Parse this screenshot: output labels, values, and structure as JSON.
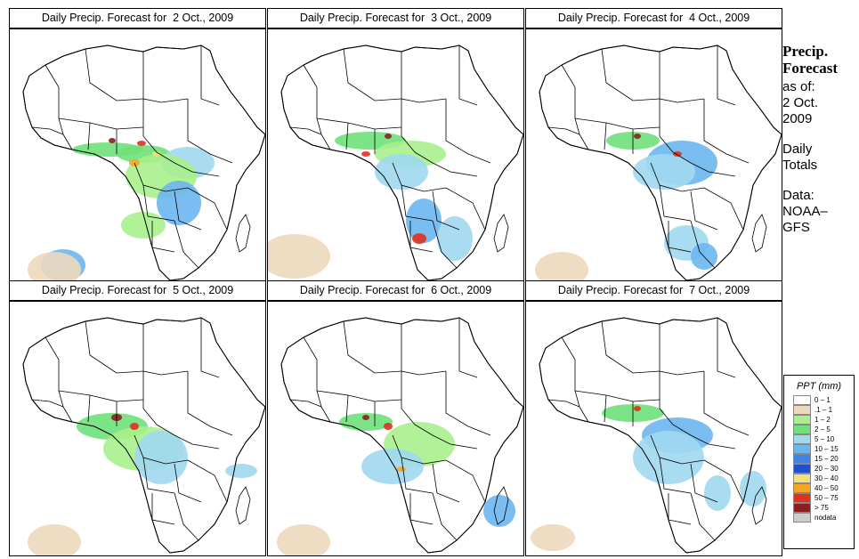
{
  "panels": [
    {
      "title": "Daily Precip. Forecast for  2 Oct., 2009"
    },
    {
      "title": "Daily Precip. Forecast for  3 Oct., 2009"
    },
    {
      "title": "Daily Precip. Forecast for  4 Oct., 2009"
    },
    {
      "title": "Daily Precip. Forecast for  5 Oct., 2009"
    },
    {
      "title": "Daily Precip. Forecast for  6 Oct., 2009"
    },
    {
      "title": "Daily Precip. Forecast for  7 Oct., 2009"
    }
  ],
  "side": {
    "heading_line1": "Precip.",
    "heading_line2": "Forecast",
    "asof_line1": "as of:",
    "asof_line2": "2 Oct.",
    "asof_line3": "2009",
    "daily_line1": "Daily",
    "daily_line2": "Totals",
    "data_line1": "Data:",
    "data_line2": "NOAA–",
    "data_line3": "GFS"
  },
  "legend": {
    "title": "PPT (mm)",
    "items": [
      {
        "label": "0 – 1",
        "color": "#ffffff"
      },
      {
        "label": ".1 – 1",
        "color": "#ecd8bc"
      },
      {
        "label": "1 – 2",
        "color": "#a9f08c"
      },
      {
        "label": "2 – 5",
        "color": "#6fe07a"
      },
      {
        "label": "5 – 10",
        "color": "#a0d8f0"
      },
      {
        "label": "10 – 15",
        "color": "#6bb6ef"
      },
      {
        "label": "15 – 20",
        "color": "#3c85e6"
      },
      {
        "label": "20 – 30",
        "color": "#1f4fcf"
      },
      {
        "label": "30 – 40",
        "color": "#f2e07a"
      },
      {
        "label": "40 – 50",
        "color": "#f5a623"
      },
      {
        "label": "50 – 75",
        "color": "#e0301e"
      },
      {
        "label": "> 75",
        "color": "#8b1f1f"
      },
      {
        "label": "nodata",
        "color": "#cccccc"
      }
    ]
  }
}
